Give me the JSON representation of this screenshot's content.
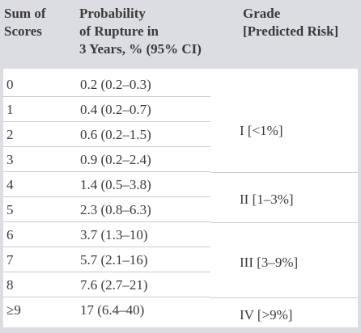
{
  "table": {
    "headers": {
      "sum": "Sum of\nScores",
      "probability": "Probability\nof Rupture in\n3 Years, % (95% CI)",
      "grade": "Grade\n[Predicted Risk]"
    },
    "rows": [
      {
        "score": "0",
        "probability": "0.2 (0.2–0.3)"
      },
      {
        "score": "1",
        "probability": "0.4 (0.2–0.7)"
      },
      {
        "score": "2",
        "probability": "0.6 (0.2–1.5)"
      },
      {
        "score": "3",
        "probability": "0.9 (0.2–2.4)"
      },
      {
        "score": "4",
        "probability": "1.4 (0.5–3.8)"
      },
      {
        "score": "5",
        "probability": "2.3 (0.8–6.3)"
      },
      {
        "score": "6",
        "probability": "3.7 (1.3–10)"
      },
      {
        "score": "7",
        "probability": "5.7 (2.1–16)"
      },
      {
        "score": "8",
        "probability": "7.6 (2.7–21)"
      },
      {
        "score": "≥9",
        "probability": "17 (6.4–40)"
      }
    ],
    "grades": [
      "I [<1%]",
      "II [1–3%]",
      "III [3–9%]",
      "IV [>9%]"
    ]
  }
}
